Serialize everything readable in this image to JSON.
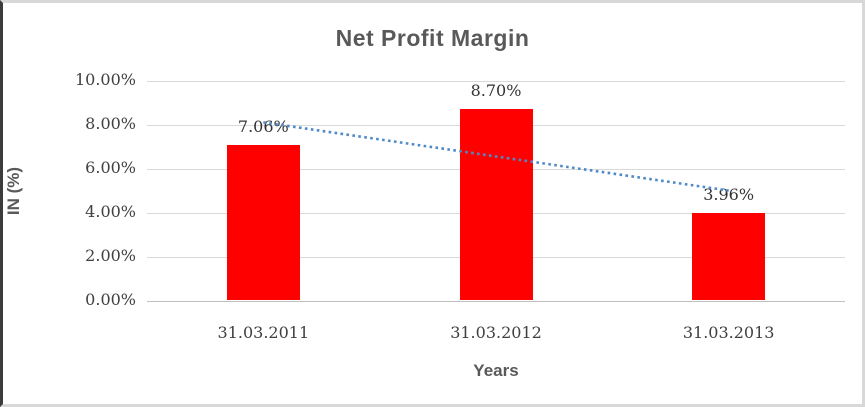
{
  "chart_data": {
    "type": "bar",
    "title": "Net Profit Margin",
    "xlabel": "Years",
    "ylabel": "IN (%)",
    "categories": [
      "31.03.2011",
      "31.03.2012",
      "31.03.2013"
    ],
    "values": [
      7.06,
      8.7,
      3.96
    ],
    "data_labels": [
      "7.06%",
      "8.70%",
      "3.96%"
    ],
    "y_ticks": [
      {
        "label": "0.00%",
        "value": 0
      },
      {
        "label": "2.00%",
        "value": 2
      },
      {
        "label": "4.00%",
        "value": 4
      },
      {
        "label": "6.00%",
        "value": 6
      },
      {
        "label": "8.00%",
        "value": 8
      },
      {
        "label": "10.00%",
        "value": 10
      }
    ],
    "ylim": [
      0,
      10
    ],
    "grid": true,
    "legend": false,
    "colors": {
      "bar": "#FF0000",
      "trendline": "#4E8AC8",
      "gridline": "#D9D9D9",
      "axis_line": "#BFBFBF",
      "title_text": "#595959",
      "tick_text": "#404040"
    },
    "trendline": {
      "type": "linear",
      "style": "dotted",
      "color": "#4E8AC8",
      "start_value": 8.12,
      "end_value": 5.02
    }
  }
}
